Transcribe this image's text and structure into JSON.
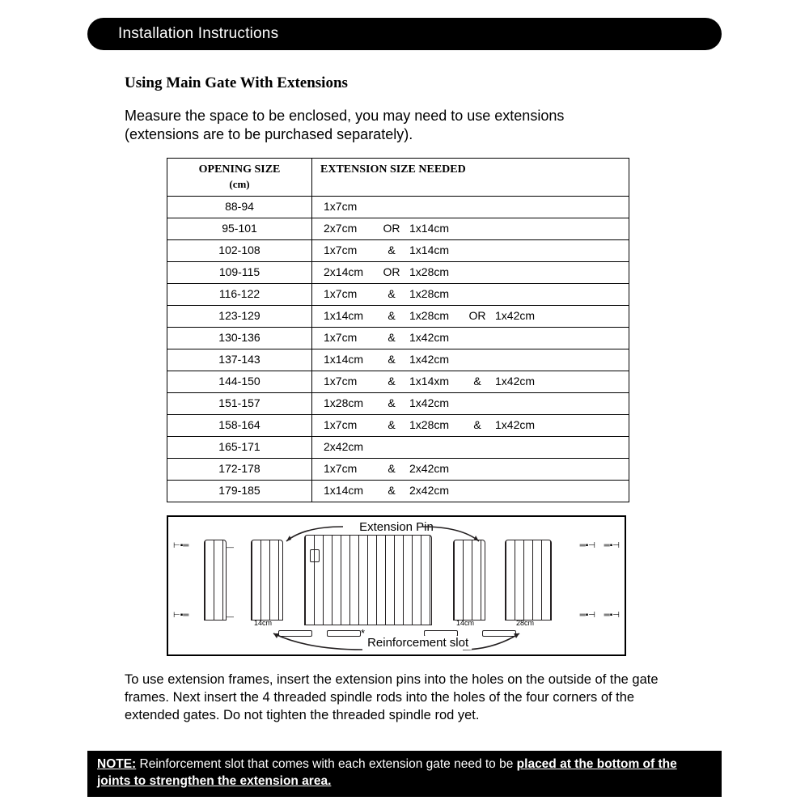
{
  "header": {
    "title": "Installation Instructions"
  },
  "section_title": "Using Main Gate With Extensions",
  "intro": "Measure the space to be enclosed, you may need to use extensions (extensions are to be purchased separately).",
  "table": {
    "col1_header": "OPENING SIZE",
    "col1_unit": "(cm)",
    "col2_header": "EXTENSION SIZE NEEDED",
    "rows": [
      {
        "size": "88-94",
        "ext": [
          [
            "1x7cm"
          ]
        ]
      },
      {
        "size": "95-101",
        "ext": [
          [
            "2x7cm",
            "OR",
            "1x14cm"
          ]
        ]
      },
      {
        "size": "102-108",
        "ext": [
          [
            "1x7cm",
            "&",
            "1x14cm"
          ]
        ]
      },
      {
        "size": "109-115",
        "ext": [
          [
            "2x14cm",
            "OR",
            "1x28cm"
          ]
        ]
      },
      {
        "size": "116-122",
        "ext": [
          [
            "1x7cm",
            "&",
            "1x28cm"
          ]
        ]
      },
      {
        "size": "123-129",
        "ext": [
          [
            "1x14cm",
            "&",
            "1x28cm",
            "OR",
            "1x42cm"
          ]
        ]
      },
      {
        "size": "130-136",
        "ext": [
          [
            "1x7cm",
            "&",
            "1x42cm"
          ]
        ]
      },
      {
        "size": "137-143",
        "ext": [
          [
            "1x14cm",
            "&",
            "1x42cm"
          ]
        ]
      },
      {
        "size": "144-150",
        "ext": [
          [
            "1x7cm",
            "&",
            "1x14xm",
            "&",
            "1x42cm"
          ]
        ]
      },
      {
        "size": "151-157",
        "ext": [
          [
            "1x28cm",
            "&",
            "1x42cm"
          ]
        ]
      },
      {
        "size": "158-164",
        "ext": [
          [
            "1x7cm",
            "&",
            "1x28cm",
            "&",
            "1x42cm"
          ]
        ]
      },
      {
        "size": "165-171",
        "ext": [
          [
            "2x42cm"
          ]
        ]
      },
      {
        "size": "172-178",
        "ext": [
          [
            "1x7cm",
            "&",
            "2x42cm"
          ]
        ]
      },
      {
        "size": "179-185",
        "ext": [
          [
            "1x14cm",
            "&",
            "2x42cm"
          ]
        ]
      }
    ]
  },
  "diagram": {
    "label_top": "Extension Pin",
    "label_bottom": "Reinforcement slot",
    "dim_14": "14cm",
    "dim_28": "28cm",
    "asterisk": "*"
  },
  "body_text": "To use extension frames, insert the extension pins into the holes on the outside of the gate frames. Next insert the 4 threaded spindle rods into the holes of the four corners of the extended gates. Do not tighten the threaded spindle rod yet.",
  "note": {
    "label": "NOTE:",
    "text_before": " Reinforcement slot that comes with each extension gate need to be ",
    "emph": "placed at the bottom of the joints to strengthen the extension area."
  },
  "colors": {
    "black": "#000000",
    "white": "#ffffff",
    "ink": "#231f20"
  }
}
